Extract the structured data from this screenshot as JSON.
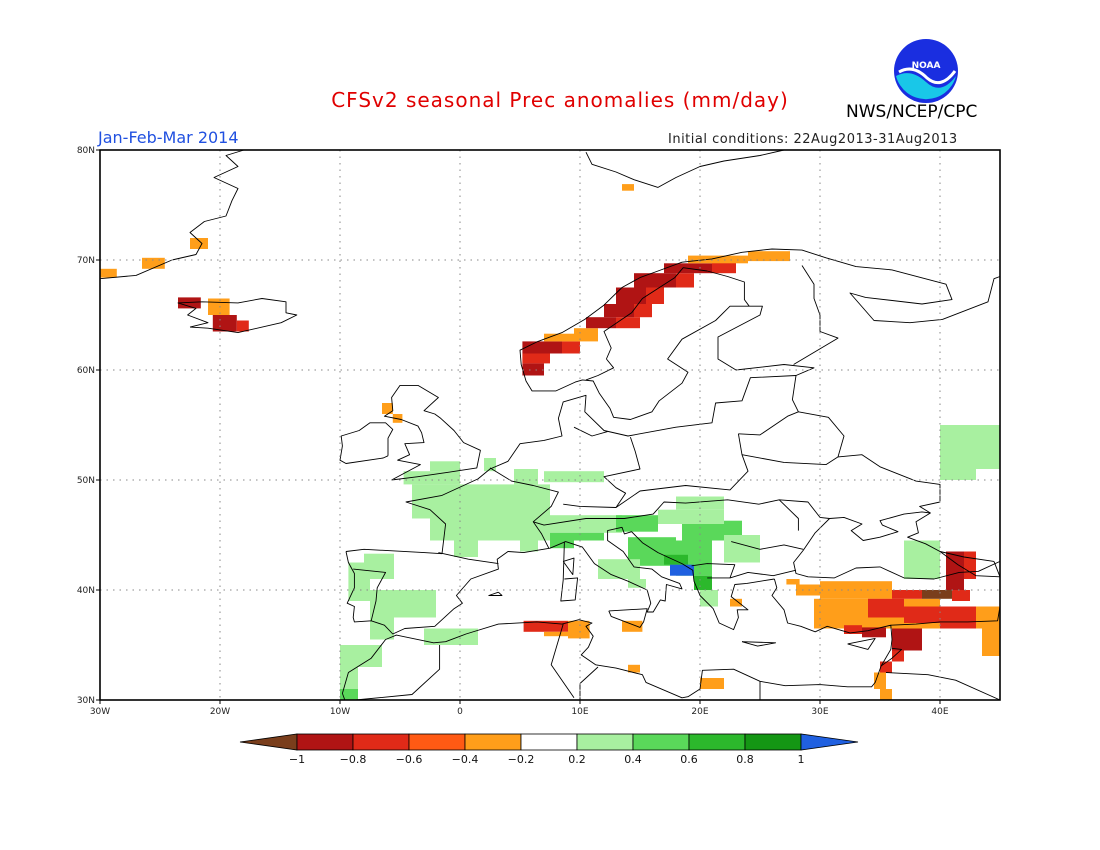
{
  "header": {
    "title": "CFSv2 seasonal Prec anomalies (mm/day)",
    "season": "Jan-Feb-Mar 2014",
    "initial_conditions": "Initial conditions: 22Aug2013-31Aug2013",
    "organization": "NWS/NCEP/CPC",
    "logo_text": "NOAA"
  },
  "map": {
    "lon_range": [
      -30,
      45
    ],
    "lat_range": [
      30,
      80
    ],
    "lon_labels": [
      "30W",
      "20W",
      "10W",
      "0",
      "10E",
      "20E",
      "30E",
      "40E"
    ],
    "lat_labels": [
      "30N",
      "40N",
      "50N",
      "60N",
      "70N",
      "80N"
    ],
    "grid": true
  },
  "colorbar": {
    "labels": [
      "-1",
      "-0.8",
      "-0.6",
      "-0.4",
      "-0.2",
      "0.2",
      "0.4",
      "0.6",
      "0.8",
      "1"
    ],
    "colors": [
      "#7a3e1c",
      "#b01414",
      "#e02a18",
      "#ff5a14",
      "#ff9e1a",
      "#ffffff",
      "#a8f0a0",
      "#5ad85a",
      "#2cb82c",
      "#149614",
      "#2060e0"
    ]
  },
  "colors": {
    "brown": "#7a3e1c",
    "dark_red": "#b01414",
    "red": "#e02a18",
    "orange_red": "#ff5a14",
    "orange": "#ff9e1a",
    "light_green": "#a8f0a0",
    "green": "#5ad85a",
    "mid_green": "#2cb82c",
    "dark_green": "#149614",
    "blue": "#2060e0"
  },
  "anomalies": [
    {
      "lon": [
        -30,
        -28.6
      ],
      "lat": [
        68.4,
        69.2
      ],
      "v": -0.3
    },
    {
      "lon": [
        -26.5,
        -24.6
      ],
      "lat": [
        69.2,
        70.2
      ],
      "v": -0.3
    },
    {
      "lon": [
        -22.5,
        -21
      ],
      "lat": [
        71,
        72
      ],
      "v": -0.3
    },
    {
      "lon": [
        -23.5,
        -21.6
      ],
      "lat": [
        65.6,
        66.6
      ],
      "v": -0.9
    },
    {
      "lon": [
        -21,
        -19.2
      ],
      "lat": [
        65,
        66.5
      ],
      "v": -0.3
    },
    {
      "lon": [
        -20.6,
        -18.6
      ],
      "lat": [
        63.5,
        65
      ],
      "v": -0.9
    },
    {
      "lon": [
        -18.6,
        -17.6
      ],
      "lat": [
        63.5,
        64.5
      ],
      "v": -0.7
    },
    {
      "lon": [
        -6.5,
        -5.6
      ],
      "lat": [
        56,
        57
      ],
      "v": -0.3
    },
    {
      "lon": [
        -5.6,
        -4.8
      ],
      "lat": [
        55.2,
        56
      ],
      "v": -0.3
    },
    {
      "lon": [
        5.2,
        7
      ],
      "lat": [
        59.5,
        60.6
      ],
      "v": -0.9
    },
    {
      "lon": [
        5.2,
        7.5
      ],
      "lat": [
        60.6,
        61.5
      ],
      "v": -0.7
    },
    {
      "lon": [
        5.2,
        8.5
      ],
      "lat": [
        61.5,
        62.6
      ],
      "v": -0.9
    },
    {
      "lon": [
        8.5,
        10
      ],
      "lat": [
        61.5,
        62.6
      ],
      "v": -0.7
    },
    {
      "lon": [
        7,
        9.5
      ],
      "lat": [
        62.6,
        63.3
      ],
      "v": -0.3
    },
    {
      "lon": [
        9.5,
        11.5
      ],
      "lat": [
        62.6,
        63.8
      ],
      "v": -0.3
    },
    {
      "lon": [
        10.5,
        13
      ],
      "lat": [
        63.8,
        64.8
      ],
      "v": -0.9
    },
    {
      "lon": [
        13,
        15
      ],
      "lat": [
        63.8,
        64.8
      ],
      "v": -0.7
    },
    {
      "lon": [
        12,
        14.5
      ],
      "lat": [
        64.8,
        66
      ],
      "v": -0.9
    },
    {
      "lon": [
        14.5,
        16
      ],
      "lat": [
        64.8,
        66
      ],
      "v": -0.7
    },
    {
      "lon": [
        13,
        15.5
      ],
      "lat": [
        66,
        67.5
      ],
      "v": -0.9
    },
    {
      "lon": [
        15.5,
        17
      ],
      "lat": [
        66,
        67.5
      ],
      "v": -0.7
    },
    {
      "lon": [
        14.5,
        18
      ],
      "lat": [
        67.5,
        68.8
      ],
      "v": -0.9
    },
    {
      "lon": [
        18,
        19.5
      ],
      "lat": [
        67.5,
        68.8
      ],
      "v": -0.7
    },
    {
      "lon": [
        17,
        21
      ],
      "lat": [
        68.8,
        69.7
      ],
      "v": -0.9
    },
    {
      "lon": [
        21,
        23
      ],
      "lat": [
        68.8,
        70
      ],
      "v": -0.7
    },
    {
      "lon": [
        19,
        24
      ],
      "lat": [
        69.7,
        70.4
      ],
      "v": -0.3
    },
    {
      "lon": [
        24,
        27.5
      ],
      "lat": [
        69.9,
        70.8
      ],
      "v": -0.3
    },
    {
      "lon": [
        13.5,
        14.5
      ],
      "lat": [
        76.3,
        76.9
      ],
      "v": -0.3
    },
    {
      "lon": [
        -4.7,
        0
      ],
      "lat": [
        49.6,
        50.8
      ],
      "v": 0.3
    },
    {
      "lon": [
        -2.5,
        0
      ],
      "lat": [
        50.8,
        51.7
      ],
      "v": 0.3
    },
    {
      "lon": [
        2,
        3
      ],
      "lat": [
        50.8,
        52
      ],
      "v": 0.3
    },
    {
      "lon": [
        4.5,
        6.5
      ],
      "lat": [
        49.6,
        51
      ],
      "v": 0.3
    },
    {
      "lon": [
        7,
        12
      ],
      "lat": [
        49.8,
        50.8
      ],
      "v": 0.3
    },
    {
      "lon": [
        -4,
        7.5
      ],
      "lat": [
        46.5,
        49.6
      ],
      "v": 0.3
    },
    {
      "lon": [
        -2.5,
        7.5
      ],
      "lat": [
        44.5,
        46.5
      ],
      "v": 0.3
    },
    {
      "lon": [
        -0.5,
        1.5
      ],
      "lat": [
        43,
        44.5
      ],
      "v": 0.3
    },
    {
      "lon": [
        5,
        6.5
      ],
      "lat": [
        43.5,
        44.5
      ],
      "v": 0.3
    },
    {
      "lon": [
        7.5,
        13.5
      ],
      "lat": [
        45.2,
        46.8
      ],
      "v": 0.3
    },
    {
      "lon": [
        7.5,
        9.5
      ],
      "lat": [
        43.8,
        45.2
      ],
      "v": 0.5
    },
    {
      "lon": [
        9.5,
        12
      ],
      "lat": [
        44.5,
        45.2
      ],
      "v": 0.5
    },
    {
      "lon": [
        13,
        16.5
      ],
      "lat": [
        45.3,
        46.8
      ],
      "v": 0.5
    },
    {
      "lon": [
        16.5,
        22
      ],
      "lat": [
        46,
        47.3
      ],
      "v": 0.3
    },
    {
      "lon": [
        18,
        22
      ],
      "lat": [
        47.3,
        48.5
      ],
      "v": 0.3
    },
    {
      "lon": [
        18.5,
        22
      ],
      "lat": [
        44.5,
        46
      ],
      "v": 0.5
    },
    {
      "lon": [
        22,
        23.5
      ],
      "lat": [
        45,
        46.3
      ],
      "v": 0.5
    },
    {
      "lon": [
        22,
        25
      ],
      "lat": [
        42.5,
        45
      ],
      "v": 0.3
    },
    {
      "lon": [
        14,
        18
      ],
      "lat": [
        42.2,
        44.8
      ],
      "v": 0.5
    },
    {
      "lon": [
        18,
        21
      ],
      "lat": [
        41.3,
        44.5
      ],
      "v": 0.5
    },
    {
      "lon": [
        17,
        19
      ],
      "lat": [
        42.3,
        43.2
      ],
      "v": 0.7
    },
    {
      "lon": [
        17.5,
        19.5
      ],
      "lat": [
        41.3,
        42.3
      ],
      "v": 1.1
    },
    {
      "lon": [
        19.5,
        21
      ],
      "lat": [
        40,
        41.3
      ],
      "v": 0.7
    },
    {
      "lon": [
        20,
        21.5
      ],
      "lat": [
        38.5,
        40
      ],
      "v": 0.3
    },
    {
      "lon": [
        11.5,
        15
      ],
      "lat": [
        41,
        42.8
      ],
      "v": 0.3
    },
    {
      "lon": [
        14,
        15.5
      ],
      "lat": [
        40.2,
        41
      ],
      "v": 0.3
    },
    {
      "lon": [
        -9.3,
        -7.5
      ],
      "lat": [
        39,
        42.5
      ],
      "v": 0.3
    },
    {
      "lon": [
        -7.5,
        -2
      ],
      "lat": [
        37.5,
        40
      ],
      "v": 0.3
    },
    {
      "lon": [
        -8,
        -5.5
      ],
      "lat": [
        41,
        43.3
      ],
      "v": 0.3
    },
    {
      "lon": [
        -7.5,
        -5.5
      ],
      "lat": [
        35.5,
        37.5
      ],
      "v": 0.3
    },
    {
      "lon": [
        -3,
        1.5
      ],
      "lat": [
        35,
        36.5
      ],
      "v": 0.3
    },
    {
      "lon": [
        -10,
        -6.5
      ],
      "lat": [
        33,
        35
      ],
      "v": 0.3
    },
    {
      "lon": [
        -10,
        -8.5
      ],
      "lat": [
        31,
        33
      ],
      "v": 0.3
    },
    {
      "lon": [
        -10,
        -8.5
      ],
      "lat": [
        30,
        31
      ],
      "v": 0.5
    },
    {
      "lon": [
        37,
        40
      ],
      "lat": [
        41,
        44.5
      ],
      "v": 0.3
    },
    {
      "lon": [
        40,
        43
      ],
      "lat": [
        50,
        55
      ],
      "v": 0.3
    },
    {
      "lon": [
        43,
        45
      ],
      "lat": [
        51,
        55
      ],
      "v": 0.3
    },
    {
      "lon": [
        5.3,
        9
      ],
      "lat": [
        36.2,
        37.2
      ],
      "v": -0.7
    },
    {
      "lon": [
        9,
        10.8
      ],
      "lat": [
        35.6,
        37.2
      ],
      "v": -0.3
    },
    {
      "lon": [
        7,
        9
      ],
      "lat": [
        35.8,
        36.2
      ],
      "v": -0.3
    },
    {
      "lon": [
        13.5,
        15.2
      ],
      "lat": [
        36.2,
        37.2
      ],
      "v": -0.3
    },
    {
      "lon": [
        14,
        15
      ],
      "lat": [
        32.5,
        33.2
      ],
      "v": -0.3
    },
    {
      "lon": [
        20,
        22
      ],
      "lat": [
        31,
        32
      ],
      "v": -0.3
    },
    {
      "lon": [
        22.5,
        23.5
      ],
      "lat": [
        38.5,
        39.2
      ],
      "v": -0.3
    },
    {
      "lon": [
        27.2,
        28.3
      ],
      "lat": [
        40.5,
        41
      ],
      "v": -0.3
    },
    {
      "lon": [
        28,
        30.8
      ],
      "lat": [
        39.5,
        40.5
      ],
      "v": -0.3
    },
    {
      "lon": [
        30,
        36
      ],
      "lat": [
        39.2,
        40.8
      ],
      "v": -0.3
    },
    {
      "lon": [
        29.5,
        40
      ],
      "lat": [
        36.5,
        39.2
      ],
      "v": -0.3
    },
    {
      "lon": [
        36,
        38.5
      ],
      "lat": [
        39.2,
        40
      ],
      "v": -0.7
    },
    {
      "lon": [
        38.5,
        41
      ],
      "lat": [
        39.2,
        40
      ],
      "v": -1.1
    },
    {
      "lon": [
        40.5,
        42
      ],
      "lat": [
        40,
        43.5
      ],
      "v": -0.9
    },
    {
      "lon": [
        42,
        43
      ],
      "lat": [
        41,
        43.5
      ],
      "v": -0.7
    },
    {
      "lon": [
        41,
        42.5
      ],
      "lat": [
        39,
        40
      ],
      "v": -0.7
    },
    {
      "lon": [
        34,
        37
      ],
      "lat": [
        37.5,
        39.2
      ],
      "v": -0.7
    },
    {
      "lon": [
        37,
        40
      ],
      "lat": [
        37,
        38.5
      ],
      "v": -0.7
    },
    {
      "lon": [
        40,
        43
      ],
      "lat": [
        36.5,
        38.5
      ],
      "v": -0.7
    },
    {
      "lon": [
        43,
        45
      ],
      "lat": [
        36.5,
        38.5
      ],
      "v": -0.3
    },
    {
      "lon": [
        43.5,
        45
      ],
      "lat": [
        34,
        36.5
      ],
      "v": -0.3
    },
    {
      "lon": [
        32,
        33.5
      ],
      "lat": [
        36,
        36.8
      ],
      "v": -0.7
    },
    {
      "lon": [
        33.5,
        35.5
      ],
      "lat": [
        35.7,
        36.6
      ],
      "v": -0.9
    },
    {
      "lon": [
        36,
        38.5
      ],
      "lat": [
        34.5,
        36.5
      ],
      "v": -0.9
    },
    {
      "lon": [
        36,
        37
      ],
      "lat": [
        33.5,
        34.5
      ],
      "v": -0.7
    },
    {
      "lon": [
        35,
        36
      ],
      "lat": [
        32.5,
        33.5
      ],
      "v": -0.7
    },
    {
      "lon": [
        34.5,
        35.5
      ],
      "lat": [
        31,
        32.5
      ],
      "v": -0.3
    },
    {
      "lon": [
        35,
        36
      ],
      "lat": [
        30,
        31
      ],
      "v": -0.3
    }
  ]
}
